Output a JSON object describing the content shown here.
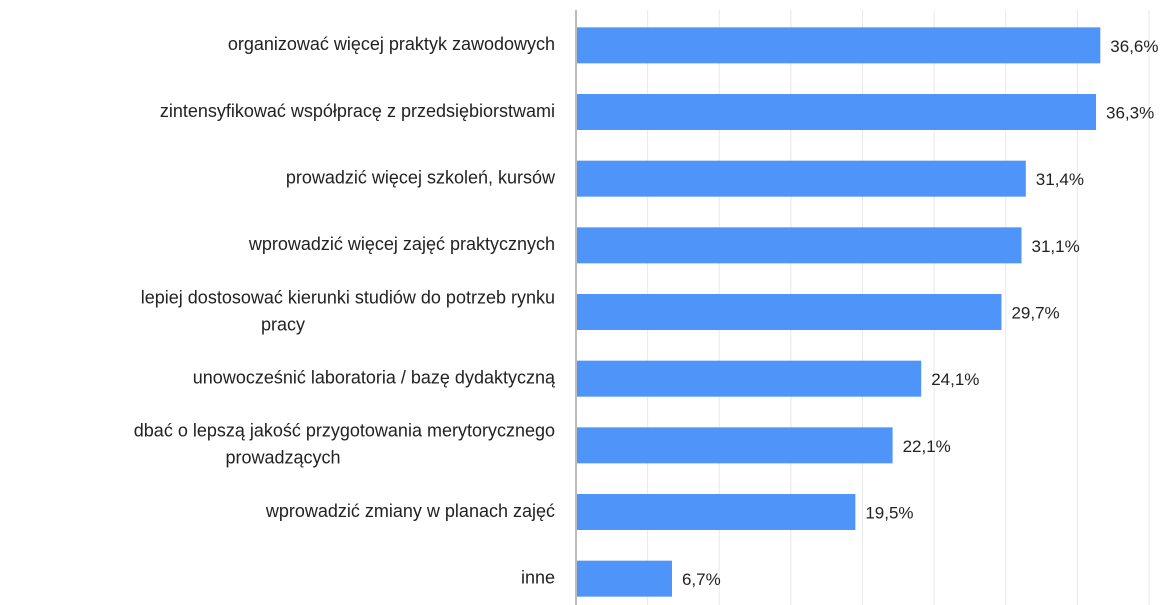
{
  "chart_data": {
    "type": "hbar",
    "categories": [
      "organizować więcej praktyk zawodowych",
      "zintensyfikować współpracę z przedsiębiorstwami",
      "prowadzić więcej szkoleń, kursów",
      "wprowadzić więcej zajęć praktycznych",
      [
        "lepiej dostosować kierunki studiów do potrzeb rynku",
        "pracy"
      ],
      "unowocześnić laboratoria / bazę dydaktyczną",
      [
        "dbać o lepszą jakość przygotowania merytorycznego",
        "prowadzących"
      ],
      "wprowadzić zmiany w planach zajęć",
      "inne"
    ],
    "values": [
      36.6,
      36.3,
      31.4,
      31.1,
      29.7,
      24.1,
      22.1,
      19.5,
      6.7
    ],
    "value_labels": [
      "36,6%",
      "36,3%",
      "31,4%",
      "31,1%",
      "29,7%",
      "24,1%",
      "22,1%",
      "19,5%",
      "6,7%"
    ],
    "color": "#4f94f8",
    "xlim": [
      0,
      40
    ],
    "xticks": [
      0,
      5,
      10,
      15,
      20,
      25,
      30,
      35,
      40
    ],
    "grid": true
  }
}
